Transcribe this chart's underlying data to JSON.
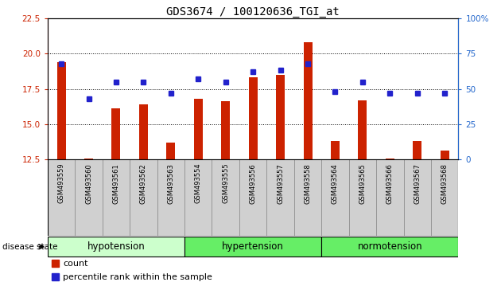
{
  "title": "GDS3674 / 100120636_TGI_at",
  "samples": [
    "GSM493559",
    "GSM493560",
    "GSM493561",
    "GSM493562",
    "GSM493563",
    "GSM493554",
    "GSM493555",
    "GSM493556",
    "GSM493557",
    "GSM493558",
    "GSM493564",
    "GSM493565",
    "GSM493566",
    "GSM493567",
    "GSM493568"
  ],
  "bar_values": [
    19.4,
    12.55,
    16.1,
    16.4,
    13.7,
    16.8,
    16.6,
    18.3,
    18.5,
    20.8,
    13.8,
    16.7,
    12.55,
    13.8,
    13.1
  ],
  "dot_values_pct": [
    68,
    43,
    55,
    55,
    47,
    57,
    55,
    62,
    63,
    68,
    48,
    55,
    47,
    47,
    47
  ],
  "ylim_left": [
    12.5,
    22.5
  ],
  "ylim_right": [
    0,
    100
  ],
  "yticks_left": [
    12.5,
    15.0,
    17.5,
    20.0,
    22.5
  ],
  "yticks_right": [
    0,
    25,
    50,
    75,
    100
  ],
  "bar_color": "#CC2200",
  "dot_color": "#2222CC",
  "tick_label_bg": "#cccccc",
  "group_defs": [
    {
      "name": "hypotension",
      "start": 0,
      "end": 4,
      "facecolor": "#ccffcc"
    },
    {
      "name": "hypertension",
      "start": 5,
      "end": 9,
      "facecolor": "#66ee66"
    },
    {
      "name": "normotension",
      "start": 10,
      "end": 14,
      "facecolor": "#66ee66"
    }
  ],
  "disease_state_label": "disease state"
}
